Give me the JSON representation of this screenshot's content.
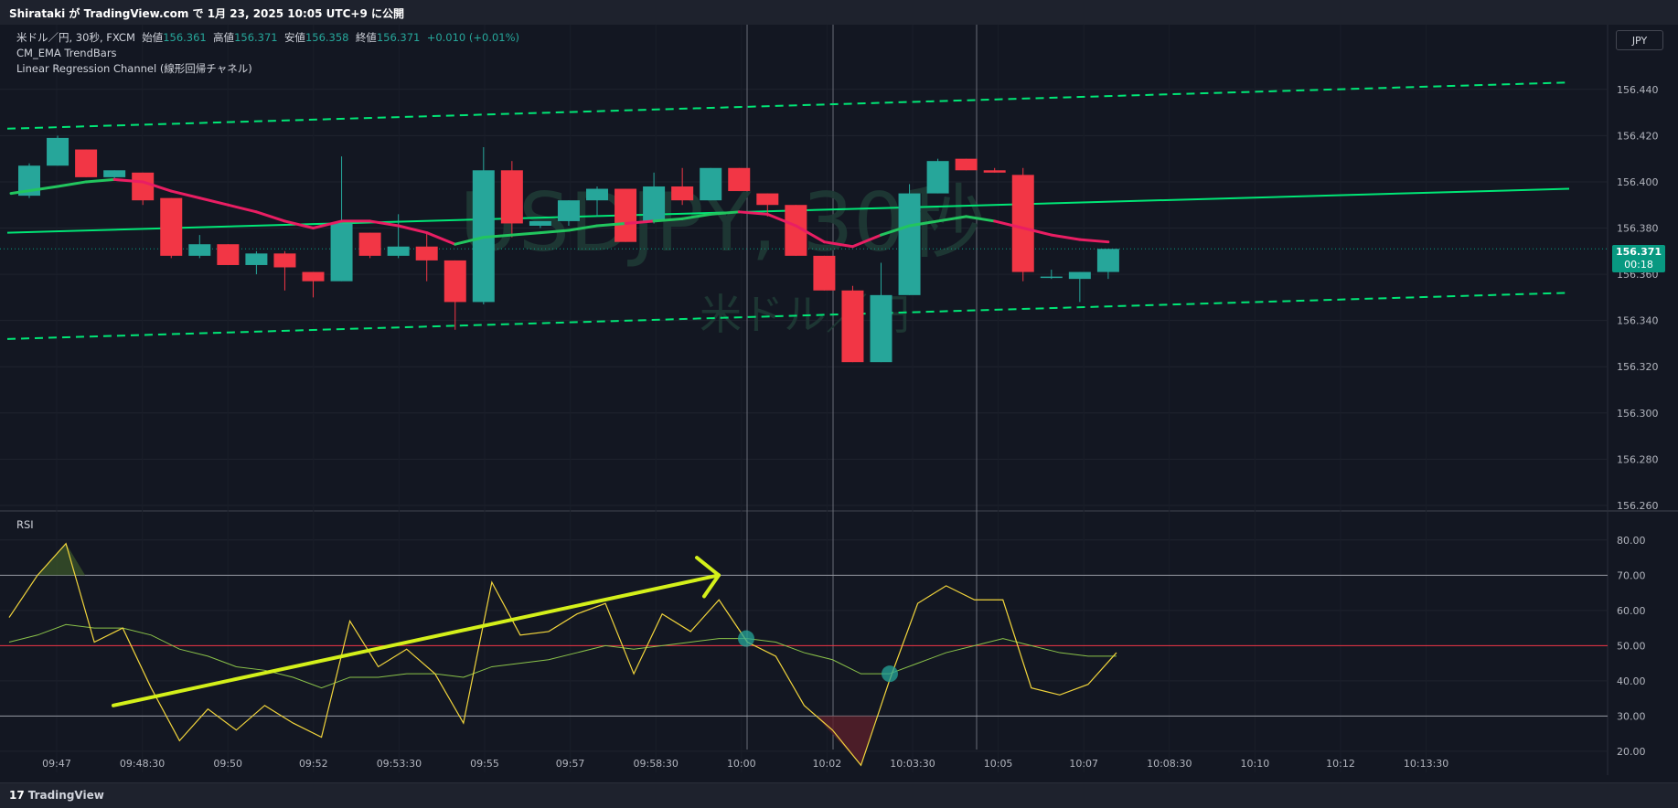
{
  "header": {
    "published": "Shirataki が TradingView.com で 1月 23, 2025 10:05 UTC+9 に公開"
  },
  "legend": {
    "symbol": "米ドル／円, 30秒, FXCM",
    "open_label": "始値",
    "open": "156.361",
    "high_label": "高値",
    "high": "156.371",
    "low_label": "安値",
    "low": "156.358",
    "close_label": "終値",
    "close": "156.371",
    "change": "+0.010 (+0.01%)",
    "indicator1": "CM_EMA TrendBars",
    "indicator2": "Linear Regression Channel (線形回帰チャネル)"
  },
  "currency_button": "JPY",
  "last_price": {
    "price": "156.371",
    "countdown": "00:18"
  },
  "rsi_pane": {
    "label": "RSI"
  },
  "watermark": {
    "ticker": "USDJPY, 30秒",
    "name": "米ドル／円"
  },
  "footer": {
    "brand": "TradingView"
  },
  "colors": {
    "background": "#131722",
    "up": "#26a69a",
    "down": "#f23645",
    "ema_up": "#22c55e",
    "ema_down": "#e91e63",
    "regression": "#00e676",
    "rsi": "#f2d53c",
    "rsi_ma": "#8bc34a",
    "annotation": "#d4f01a",
    "midline": "#f23645"
  },
  "chart_data": [
    {
      "type": "candlestick",
      "title": "米ドル／円, 30秒, FXCM",
      "ylim": [
        156.258,
        156.468
      ],
      "y_ticks": [
        "156.440",
        "156.420",
        "156.400",
        "156.380",
        "156.360",
        "156.340",
        "156.320",
        "156.300",
        "156.280",
        "156.260"
      ],
      "candles": [
        {
          "o": 156.394,
          "h": 156.408,
          "l": 156.393,
          "c": 156.407
        },
        {
          "o": 156.407,
          "h": 156.42,
          "l": 156.407,
          "c": 156.419
        },
        {
          "o": 156.414,
          "h": 156.414,
          "l": 156.402,
          "c": 156.402
        },
        {
          "o": 156.402,
          "h": 156.405,
          "l": 156.401,
          "c": 156.405
        },
        {
          "o": 156.404,
          "h": 156.404,
          "l": 156.39,
          "c": 156.392
        },
        {
          "o": 156.393,
          "h": 156.393,
          "l": 156.367,
          "c": 156.368
        },
        {
          "o": 156.368,
          "h": 156.377,
          "l": 156.367,
          "c": 156.373
        },
        {
          "o": 156.373,
          "h": 156.373,
          "l": 156.364,
          "c": 156.364
        },
        {
          "o": 156.364,
          "h": 156.37,
          "l": 156.36,
          "c": 156.369
        },
        {
          "o": 156.369,
          "h": 156.37,
          "l": 156.353,
          "c": 156.363
        },
        {
          "o": 156.361,
          "h": 156.361,
          "l": 156.35,
          "c": 156.357
        },
        {
          "o": 156.357,
          "h": 156.411,
          "l": 156.357,
          "c": 156.382
        },
        {
          "o": 156.378,
          "h": 156.378,
          "l": 156.367,
          "c": 156.368
        },
        {
          "o": 156.368,
          "h": 156.386,
          "l": 156.367,
          "c": 156.372
        },
        {
          "o": 156.372,
          "h": 156.378,
          "l": 156.357,
          "c": 156.366
        },
        {
          "o": 156.366,
          "h": 156.366,
          "l": 156.336,
          "c": 156.348
        },
        {
          "o": 156.348,
          "h": 156.415,
          "l": 156.347,
          "c": 156.405
        },
        {
          "o": 156.405,
          "h": 156.409,
          "l": 156.376,
          "c": 156.382
        },
        {
          "o": 156.381,
          "h": 156.383,
          "l": 156.38,
          "c": 156.383
        },
        {
          "o": 156.383,
          "h": 156.392,
          "l": 156.381,
          "c": 156.392
        },
        {
          "o": 156.392,
          "h": 156.398,
          "l": 156.385,
          "c": 156.397
        },
        {
          "o": 156.397,
          "h": 156.397,
          "l": 156.374,
          "c": 156.374
        },
        {
          "o": 156.383,
          "h": 156.404,
          "l": 156.382,
          "c": 156.398
        },
        {
          "o": 156.398,
          "h": 156.406,
          "l": 156.39,
          "c": 156.392
        },
        {
          "o": 156.392,
          "h": 156.406,
          "l": 156.392,
          "c": 156.406
        },
        {
          "o": 156.406,
          "h": 156.406,
          "l": 156.396,
          "c": 156.396
        },
        {
          "o": 156.395,
          "h": 156.395,
          "l": 156.385,
          "c": 156.39
        },
        {
          "o": 156.39,
          "h": 156.39,
          "l": 156.368,
          "c": 156.368
        },
        {
          "o": 156.368,
          "h": 156.368,
          "l": 156.353,
          "c": 156.353
        },
        {
          "o": 156.353,
          "h": 156.355,
          "l": 156.322,
          "c": 156.322
        },
        {
          "o": 156.322,
          "h": 156.365,
          "l": 156.322,
          "c": 156.351
        },
        {
          "o": 156.351,
          "h": 156.399,
          "l": 156.351,
          "c": 156.395
        },
        {
          "o": 156.395,
          "h": 156.41,
          "l": 156.395,
          "c": 156.409
        },
        {
          "o": 156.41,
          "h": 156.41,
          "l": 156.405,
          "c": 156.405
        },
        {
          "o": 156.405,
          "h": 156.406,
          "l": 156.404,
          "c": 156.404
        },
        {
          "o": 156.403,
          "h": 156.406,
          "l": 156.357,
          "c": 156.361
        },
        {
          "o": 156.359,
          "h": 156.362,
          "l": 156.358,
          "c": 156.359
        },
        {
          "o": 156.358,
          "h": 156.361,
          "l": 156.348,
          "c": 156.361
        },
        {
          "o": 156.361,
          "h": 156.371,
          "l": 156.358,
          "c": 156.371
        }
      ],
      "ema_trend": [
        156.395,
        156.398,
        156.4,
        156.401,
        156.4,
        156.396,
        156.393,
        156.39,
        156.387,
        156.383,
        156.38,
        156.383,
        156.383,
        156.381,
        156.378,
        156.373,
        156.376,
        156.377,
        156.378,
        156.379,
        156.381,
        156.382,
        156.383,
        156.384,
        156.386,
        156.387,
        156.386,
        156.381,
        156.374,
        156.372,
        156.377,
        156.381,
        156.383,
        156.385,
        156.383,
        156.38,
        156.377,
        156.375,
        156.374
      ],
      "ema_up_flags": [
        1,
        1,
        1,
        0,
        0,
        0,
        0,
        0,
        0,
        0,
        0,
        0,
        0,
        0,
        0,
        1,
        1,
        1,
        1,
        1,
        1,
        0,
        1,
        1,
        1,
        0,
        0,
        0,
        0,
        0,
        1,
        1,
        1,
        1,
        0,
        0,
        0,
        0,
        0
      ],
      "regression": {
        "start": 156.378,
        "end": 156.397,
        "upper_start": 156.423,
        "upper_end": 156.443,
        "lower_start": 156.332,
        "lower_end": 156.352
      }
    },
    {
      "type": "line",
      "title": "RSI",
      "ylim": [
        14,
        88
      ],
      "y_ticks": [
        "80.00",
        "70.00",
        "60.00",
        "50.00",
        "40.00",
        "30.00",
        "20.00"
      ],
      "bands": [
        70,
        50,
        30
      ],
      "series": [
        {
          "values": [
            58,
            70,
            79,
            51,
            55,
            38,
            23,
            32,
            26,
            33,
            28,
            24,
            57,
            44,
            49,
            42,
            28,
            68,
            53,
            54,
            59,
            62,
            42,
            59,
            54,
            63,
            51,
            47,
            33,
            26,
            16,
            40,
            62,
            67,
            63,
            63,
            38,
            36,
            39,
            48
          ]
        },
        {
          "values": [
            51,
            53,
            56,
            55,
            55,
            53,
            49,
            47,
            44,
            43,
            41,
            38,
            41,
            41,
            42,
            42,
            41,
            44,
            45,
            46,
            48,
            50,
            49,
            50,
            51,
            52,
            52,
            51,
            48,
            46,
            42,
            42,
            45,
            48,
            50,
            52,
            50,
            48,
            47,
            47
          ]
        }
      ],
      "x_ticks": [
        "09:47",
        "09:48:30",
        "09:50",
        "09:52",
        "09:53:30",
        "09:55",
        "09:57",
        "09:58:30",
        "10:00",
        "10:02",
        "10:03:30",
        "10:05",
        "10:07",
        "10:08:30",
        "10:10",
        "10:12",
        "10:13:30"
      ]
    }
  ]
}
